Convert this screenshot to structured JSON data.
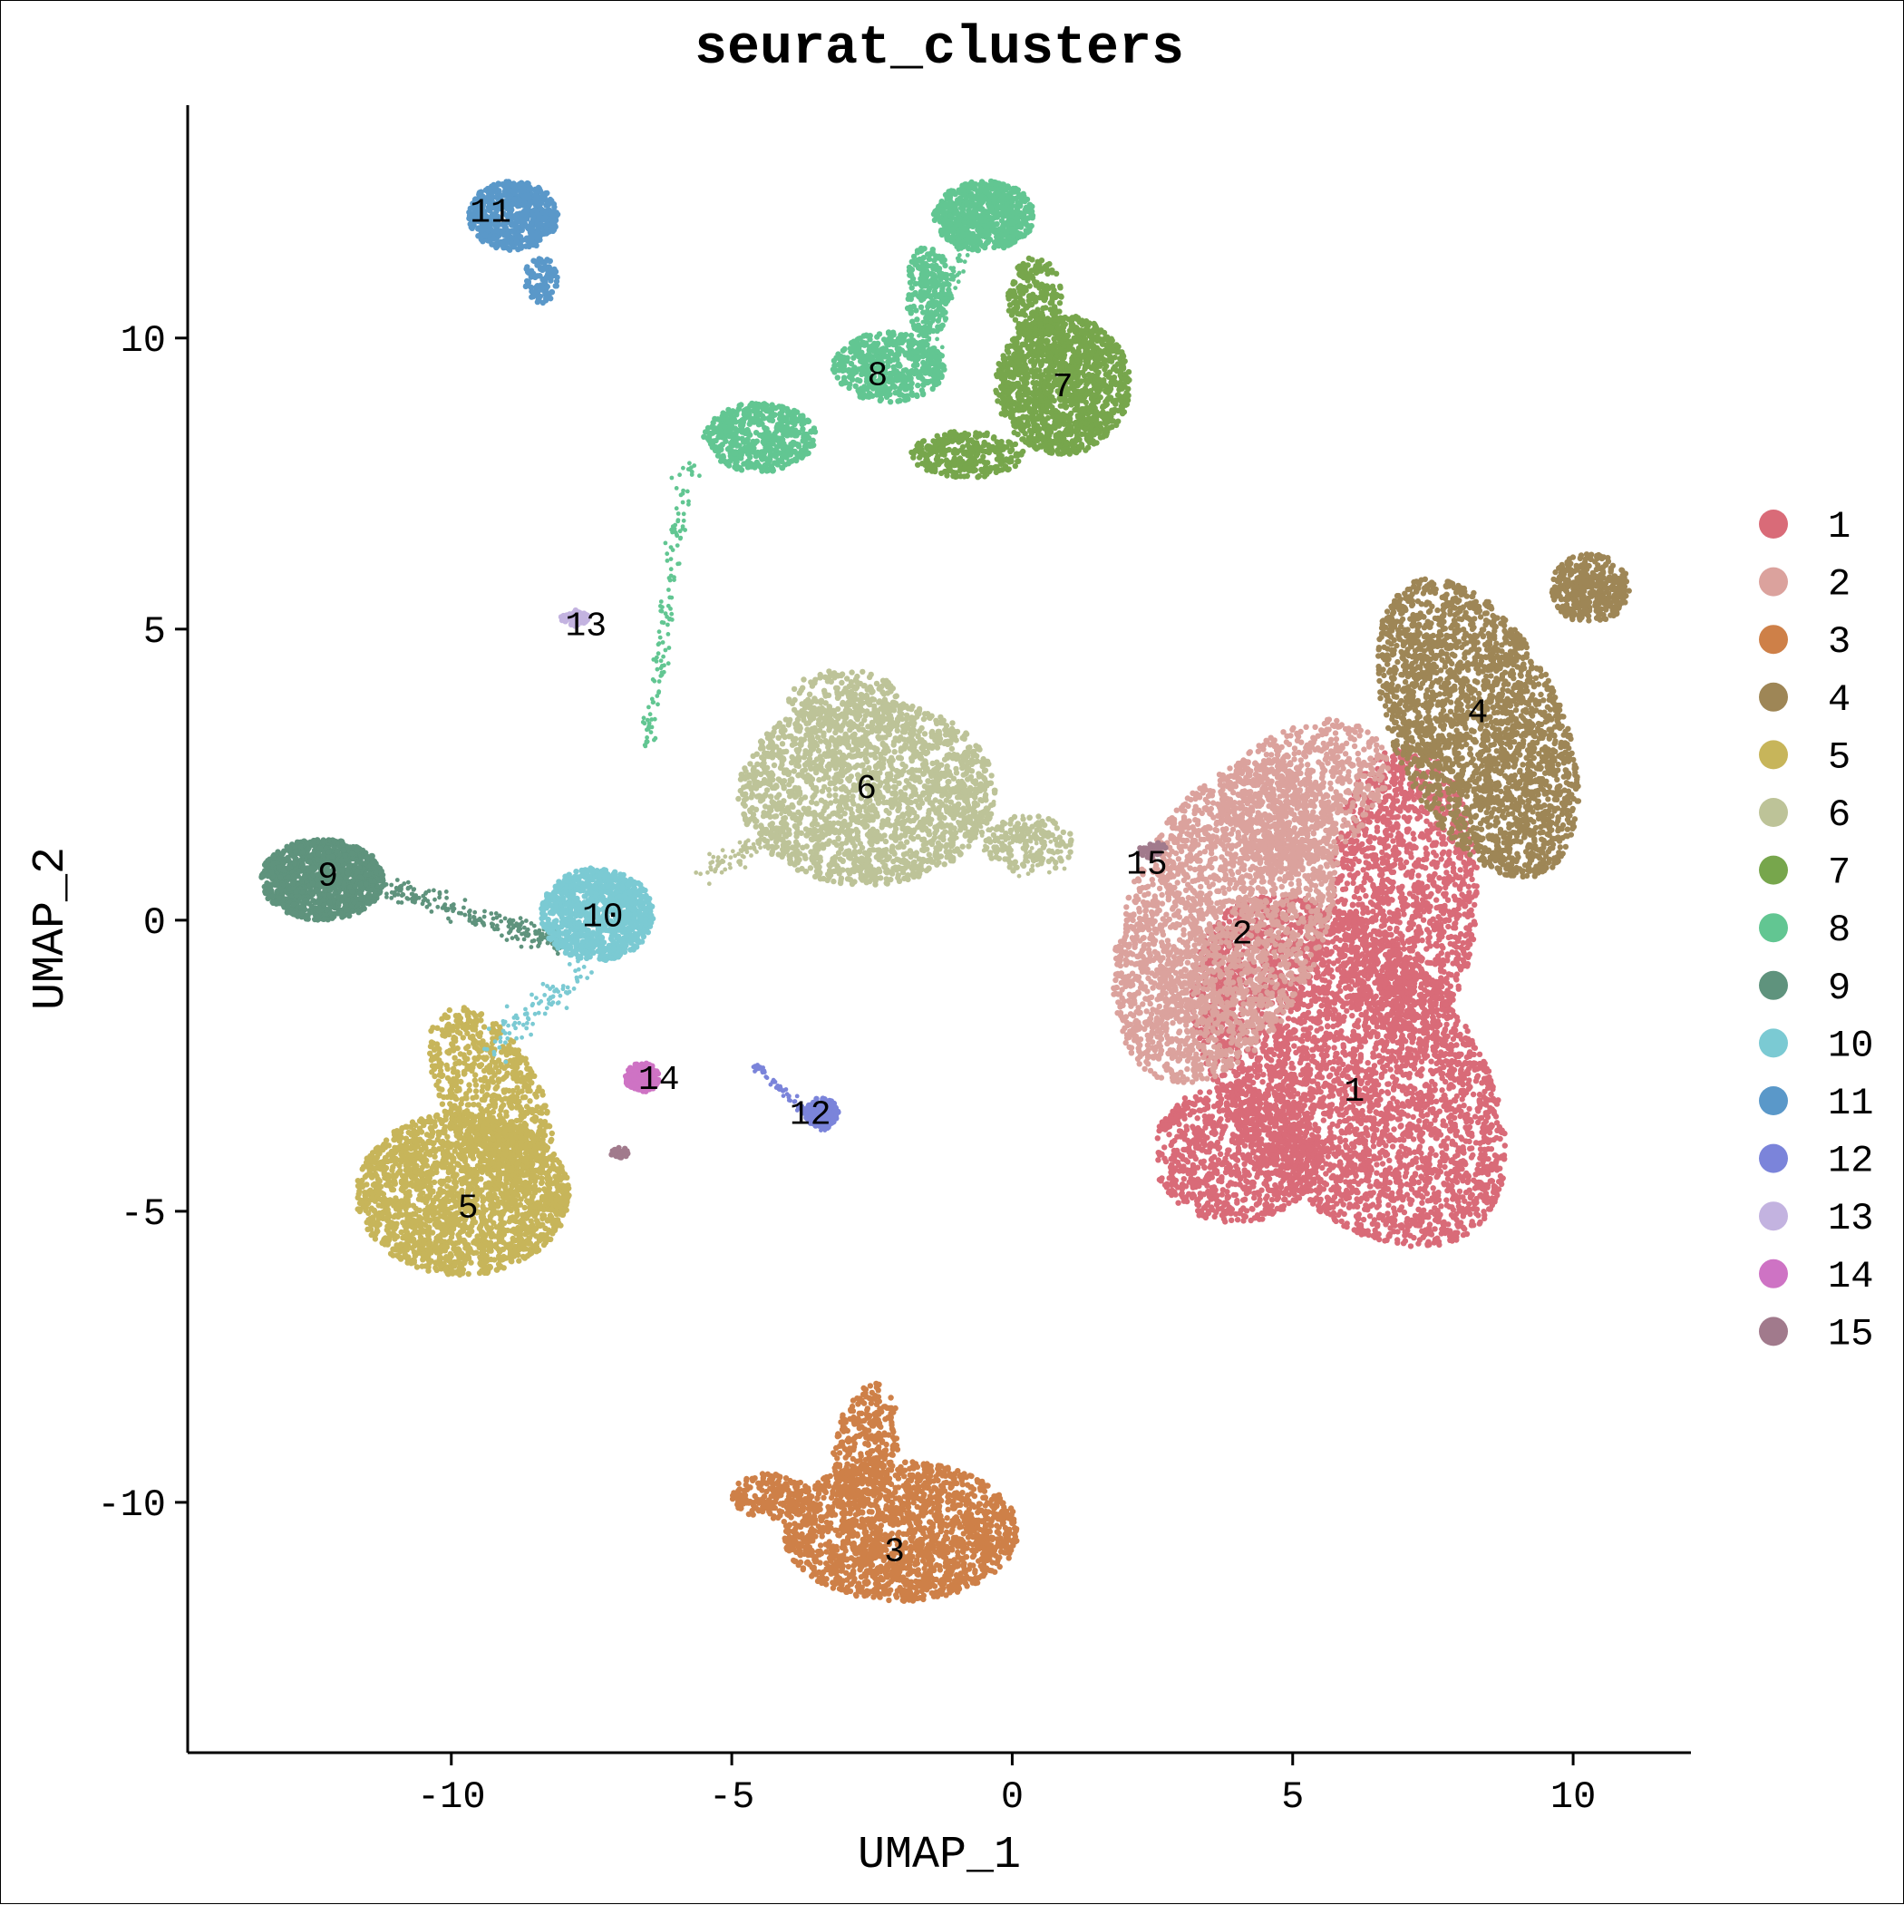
{
  "chart_data": {
    "type": "scatter",
    "title": "seurat_clusters",
    "xlabel": "UMAP_1",
    "ylabel": "UMAP_2",
    "xlim": [
      -14.7,
      12.1
    ],
    "ylim": [
      -14.3,
      14.0
    ],
    "xticks": [
      -10,
      -5,
      0,
      5,
      10
    ],
    "xtick_labels": [
      "-10",
      "-5",
      "0",
      "5",
      "10"
    ],
    "yticks": [
      -10,
      -5,
      0,
      5,
      10
    ],
    "ytick_labels": [
      "-10",
      "-5",
      "0",
      "5",
      "10"
    ],
    "grid": false,
    "legend_position": "right",
    "series": [
      {
        "name": "1",
        "color": "#D96B78",
        "label_pos": [
          6.1,
          -2.9
        ],
        "blobs": [
          [
            6.0,
            -2.6,
            2.8,
            2.7,
            -0.5,
            3800
          ],
          [
            7.0,
            0.5,
            1.3,
            2.5,
            0.0,
            1400
          ],
          [
            4.0,
            -4.0,
            1.5,
            1.2,
            0.0,
            900
          ]
        ]
      },
      {
        "name": "2",
        "color": "#DBA29D",
        "label_pos": [
          4.1,
          -0.2
        ],
        "blobs": [
          [
            3.8,
            0.0,
            2.0,
            2.6,
            0.4,
            2600
          ],
          [
            5.2,
            2.2,
            1.5,
            1.2,
            0.3,
            700
          ]
        ]
      },
      {
        "name": "3",
        "color": "#CE8048",
        "label_pos": [
          -2.1,
          -10.8
        ],
        "blobs": [
          [
            -2.0,
            -10.5,
            2.1,
            1.2,
            0.0,
            1800
          ],
          [
            -2.6,
            -9.0,
            0.6,
            1.0,
            0.3,
            300
          ],
          [
            -4.3,
            -9.9,
            0.7,
            0.4,
            0.0,
            200
          ]
        ]
      },
      {
        "name": "4",
        "color": "#9E8656",
        "label_pos": [
          8.3,
          3.6
        ],
        "blobs": [
          [
            8.3,
            3.3,
            1.8,
            2.3,
            -0.5,
            2400
          ],
          [
            10.3,
            5.7,
            0.7,
            0.6,
            0.0,
            400
          ]
        ]
      },
      {
        "name": "5",
        "color": "#C7B55A",
        "label_pos": [
          -9.7,
          -4.9
        ],
        "blobs": [
          [
            -9.8,
            -4.7,
            1.9,
            1.4,
            0.0,
            2200
          ],
          [
            -9.3,
            -3.0,
            1.1,
            1.3,
            -0.6,
            700
          ]
        ]
      },
      {
        "name": "6",
        "color": "#BDC398",
        "label_pos": [
          -2.6,
          2.3
        ],
        "blobs": [
          [
            -2.6,
            2.2,
            2.3,
            1.6,
            0.0,
            2000
          ],
          [
            -3.0,
            3.8,
            1.0,
            0.5,
            0.0,
            200
          ],
          [
            0.3,
            1.3,
            0.8,
            0.5,
            0.0,
            150
          ]
        ],
        "bridges": [
          [
            -5.5,
            0.8,
            -3.9,
            1.6,
            90,
            0.2
          ],
          [
            -1.0,
            1.8,
            0.8,
            1.0,
            100,
            0.35
          ]
        ]
      },
      {
        "name": "7",
        "color": "#77A64C",
        "label_pos": [
          0.9,
          9.2
        ],
        "blobs": [
          [
            0.9,
            9.2,
            1.2,
            1.2,
            0.0,
            1400
          ],
          [
            -0.8,
            8.0,
            1.0,
            0.4,
            0.0,
            300
          ],
          [
            0.4,
            10.7,
            0.5,
            0.7,
            0.0,
            200
          ]
        ]
      },
      {
        "name": "8",
        "color": "#62C692",
        "label_pos": [
          -2.4,
          9.4
        ],
        "blobs": [
          [
            -0.5,
            12.1,
            0.9,
            0.6,
            0.0,
            700
          ],
          [
            -4.5,
            8.3,
            1.0,
            0.6,
            0.0,
            500
          ],
          [
            -2.2,
            9.5,
            1.0,
            0.6,
            0.0,
            500
          ],
          [
            -1.5,
            10.8,
            0.4,
            0.8,
            0.0,
            200
          ]
        ],
        "bridges": [
          [
            -5.8,
            7.8,
            -6.5,
            3.0,
            130,
            0.15
          ],
          [
            -1.6,
            10.0,
            -0.8,
            11.6,
            100,
            0.2
          ]
        ]
      },
      {
        "name": "9",
        "color": "#5F937D",
        "label_pos": [
          -12.2,
          0.8
        ],
        "blobs": [
          [
            -12.3,
            0.7,
            1.1,
            0.7,
            0.0,
            1200
          ]
        ],
        "bridges": [
          [
            -11.3,
            0.6,
            -8.0,
            -0.4,
            220,
            0.2
          ]
        ]
      },
      {
        "name": "10",
        "color": "#7BCAD3",
        "label_pos": [
          -7.3,
          0.1
        ],
        "blobs": [
          [
            -7.4,
            0.1,
            1.0,
            0.8,
            0.0,
            1000
          ]
        ],
        "bridges": [
          [
            -7.6,
            -0.8,
            -9.3,
            -2.2,
            90,
            0.3
          ]
        ]
      },
      {
        "name": "11",
        "color": "#5A98C9",
        "label_pos": [
          -9.3,
          12.2
        ],
        "blobs": [
          [
            -8.9,
            12.1,
            0.8,
            0.6,
            0.0,
            650
          ],
          [
            -8.4,
            11.0,
            0.3,
            0.4,
            0.0,
            100
          ]
        ]
      },
      {
        "name": "12",
        "color": "#7B84DA",
        "label_pos": [
          -3.6,
          -3.3
        ],
        "blobs": [
          [
            -3.4,
            -3.3,
            0.3,
            0.25,
            0.0,
            200
          ]
        ],
        "bridges": [
          [
            -4.6,
            -2.5,
            -3.3,
            -3.6,
            110,
            0.06
          ]
        ]
      },
      {
        "name": "13",
        "color": "#C3B3E0",
        "label_pos": [
          -7.6,
          5.1
        ],
        "blobs": [
          [
            -7.8,
            5.2,
            0.25,
            0.15,
            0.0,
            60
          ]
        ]
      },
      {
        "name": "14",
        "color": "#CE73C4",
        "label_pos": [
          -6.3,
          -2.7
        ],
        "blobs": [
          [
            -6.6,
            -2.7,
            0.3,
            0.25,
            0.0,
            180
          ]
        ]
      },
      {
        "name": "15",
        "color": "#A17A8C",
        "label_pos": [
          2.4,
          1.0
        ],
        "blobs": [
          [
            2.5,
            1.2,
            0.25,
            0.15,
            0.0,
            40
          ],
          [
            -7.0,
            -4.0,
            0.15,
            0.1,
            0.0,
            25
          ]
        ]
      }
    ]
  }
}
